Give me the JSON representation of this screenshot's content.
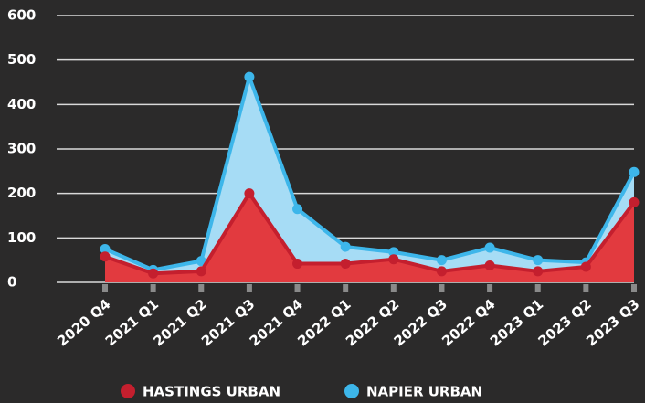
{
  "chart_data": {
    "type": "area",
    "categories": [
      "2020 Q4",
      "2021 Q1",
      "2021 Q2",
      "2021 Q3",
      "2021 Q4",
      "2022 Q1",
      "2022 Q2",
      "2022 Q3",
      "2022 Q4",
      "2023 Q1",
      "2023 Q2",
      "2023 Q3"
    ],
    "series": [
      {
        "name": "NAPIER URBAN",
        "color": "#3db6ea",
        "fill": "#a6dcf5",
        "values": [
          75,
          28,
          48,
          462,
          165,
          80,
          68,
          50,
          78,
          50,
          45,
          248
        ]
      },
      {
        "name": "HASTINGS URBAN",
        "color": "#c41f2e",
        "fill": "#e23a3f",
        "values": [
          58,
          20,
          25,
          200,
          42,
          42,
          52,
          25,
          38,
          25,
          35,
          180
        ]
      }
    ],
    "legend_order": [
      1,
      0
    ],
    "ylim": [
      0,
      600
    ],
    "yticks": [
      0,
      100,
      200,
      300,
      400,
      500,
      600
    ],
    "grid": true
  }
}
